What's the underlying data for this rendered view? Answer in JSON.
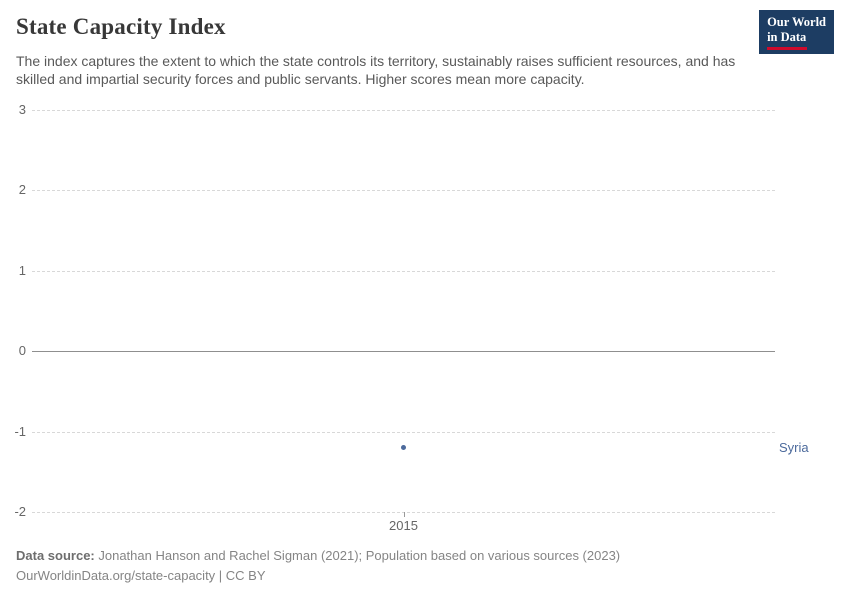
{
  "header": {
    "title": "State Capacity Index",
    "subtitle": "The index captures the extent to which the state controls its territory, sustainably raises sufficient resources, and has skilled and impartial security forces and public servants. Higher scores mean more capacity.",
    "logo": {
      "line1": "Our World",
      "line2": "in Data"
    }
  },
  "chart_data": {
    "type": "scatter",
    "title": "State Capacity Index",
    "xlabel": "",
    "ylabel": "",
    "xlim": [
      2014,
      2016
    ],
    "ylim": [
      -2,
      3
    ],
    "yticks": [
      3,
      2,
      1,
      0,
      -1,
      -2
    ],
    "xticks": [
      2015
    ],
    "grid": "horizontal-dashed",
    "zero_line": true,
    "legend_position": "entity-label-right",
    "series": [
      {
        "name": "Syria",
        "color": "#4c6a9c",
        "points": [
          {
            "x": 2015,
            "y": -1.2
          }
        ]
      }
    ]
  },
  "footer": {
    "source_label": "Data source:",
    "source_text": " Jonathan Hanson and Rachel Sigman (2021); Population based on various sources (2023)",
    "link_line": "OurWorldinData.org/state-capacity | CC BY"
  },
  "colors": {
    "accent": "#4c6a9c",
    "logo_background": "#1d3d63",
    "logo_red": "#cf0a2c",
    "gridline": "#d8d8d8",
    "zero_line": "#8f8f8f",
    "tick_text": "#666666"
  }
}
